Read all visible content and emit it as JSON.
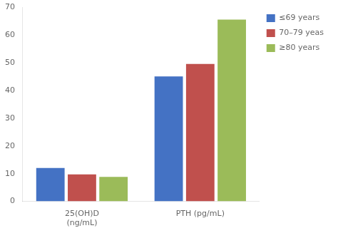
{
  "chart_data": {
    "type": "bar",
    "categories": [
      "25(OH)D\n(ng/mL)",
      "PTH (pg/mL)"
    ],
    "series": [
      {
        "name": "≤69 years",
        "color": "#4472C4",
        "values": [
          12,
          45
        ]
      },
      {
        "name": "70–79 yeas",
        "color": "#C0504D",
        "values": [
          9.7,
          49.5
        ]
      },
      {
        "name": "≥80 years",
        "color": "#9BBB59",
        "values": [
          8.8,
          65.5
        ]
      }
    ],
    "ylim": [
      0,
      70
    ],
    "yticks": [
      0,
      10,
      20,
      30,
      40,
      50,
      60,
      70
    ],
    "grid": false,
    "legend": "right"
  }
}
